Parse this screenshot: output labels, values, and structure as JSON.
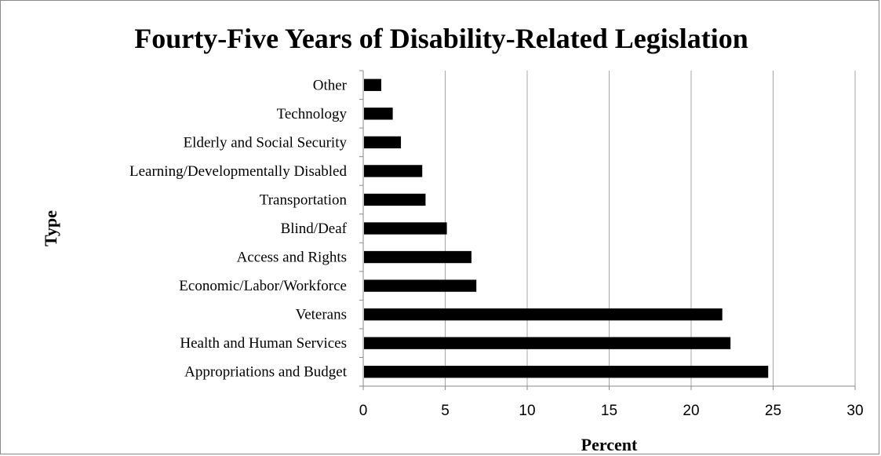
{
  "chart_data": {
    "type": "bar",
    "orientation": "horizontal",
    "title": "Fourty-Five Years of Disability-Related Legislation",
    "xlabel": "Percent",
    "ylabel": "Type",
    "xlim": [
      0,
      30
    ],
    "xticks": [
      "0",
      "5",
      "10",
      "15",
      "20",
      "25",
      "30"
    ],
    "grid": "vertical",
    "legend": "none",
    "bar_color": "#000000",
    "grid_color": "#a6a6a6",
    "categories": [
      "Appropriations and Budget",
      "Health and Human Services",
      "Veterans",
      "Economic/Labor/Workforce",
      "Access and Rights",
      "Blind/Deaf",
      "Transportation",
      "Learning/Developmentally Disabled",
      "Elderly and Social Security",
      "Technology",
      "Other"
    ],
    "values": [
      24.7,
      22.4,
      21.9,
      6.9,
      6.6,
      5.1,
      3.8,
      3.6,
      2.3,
      1.8,
      1.1
    ]
  }
}
